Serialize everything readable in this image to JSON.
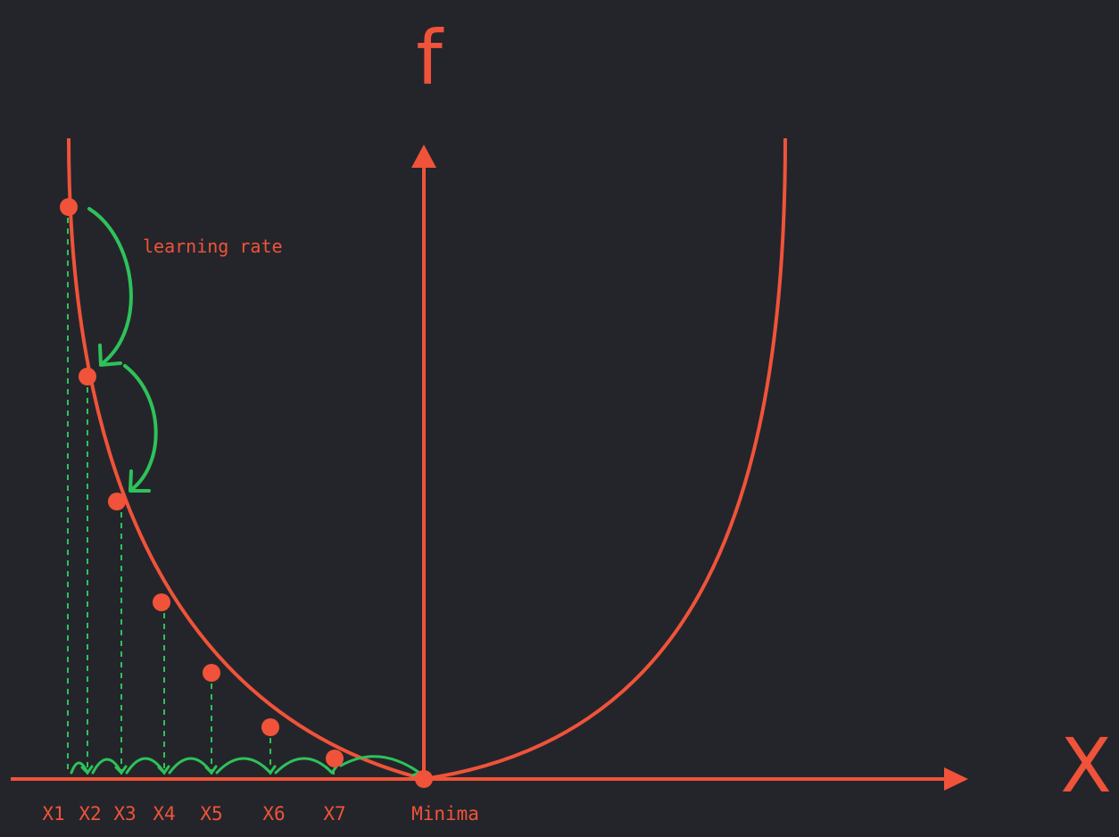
{
  "axes": {
    "y_label": "f",
    "x_label": "X"
  },
  "annotation": {
    "learning_rate_label": "learning rate"
  },
  "steps": {
    "labels": [
      "X1",
      "X2",
      "X3",
      "X4",
      "X5",
      "X6",
      "X7"
    ],
    "minima_label": "Minima"
  },
  "colors": {
    "background": "#24252a",
    "curve": "#f0533a",
    "step_arrows": "#2ec25a"
  }
}
